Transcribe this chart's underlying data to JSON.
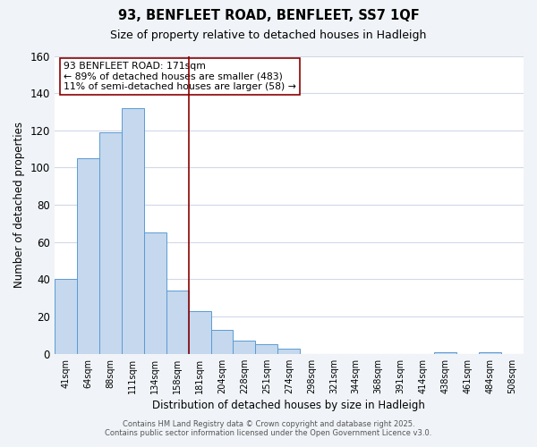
{
  "title": "93, BENFLEET ROAD, BENFLEET, SS7 1QF",
  "subtitle": "Size of property relative to detached houses in Hadleigh",
  "xlabel": "Distribution of detached houses by size in Hadleigh",
  "ylabel": "Number of detached properties",
  "bin_labels": [
    "41sqm",
    "64sqm",
    "88sqm",
    "111sqm",
    "134sqm",
    "158sqm",
    "181sqm",
    "204sqm",
    "228sqm",
    "251sqm",
    "274sqm",
    "298sqm",
    "321sqm",
    "344sqm",
    "368sqm",
    "391sqm",
    "414sqm",
    "438sqm",
    "461sqm",
    "484sqm",
    "508sqm"
  ],
  "bar_heights": [
    40,
    105,
    119,
    132,
    65,
    34,
    23,
    13,
    7,
    5,
    3,
    0,
    0,
    0,
    0,
    0,
    0,
    1,
    0,
    1,
    0
  ],
  "bar_color": "#c5d8ed",
  "bar_edge_color": "#5b9bd5",
  "vline_x": 5.5,
  "vline_color": "#8b0000",
  "annotation_text": "93 BENFLEET ROAD: 171sqm\n← 89% of detached houses are smaller (483)\n11% of semi-detached houses are larger (58) →",
  "annotation_box_color": "white",
  "annotation_box_edge": "#8b0000",
  "ylim": [
    0,
    160
  ],
  "yticks": [
    0,
    20,
    40,
    60,
    80,
    100,
    120,
    140,
    160
  ],
  "footer_line1": "Contains HM Land Registry data © Crown copyright and database right 2025.",
  "footer_line2": "Contains public sector information licensed under the Open Government Licence v3.0.",
  "bg_color": "#f0f4f8",
  "plot_bg_color": "white",
  "grid_color": "#d0d8e8"
}
